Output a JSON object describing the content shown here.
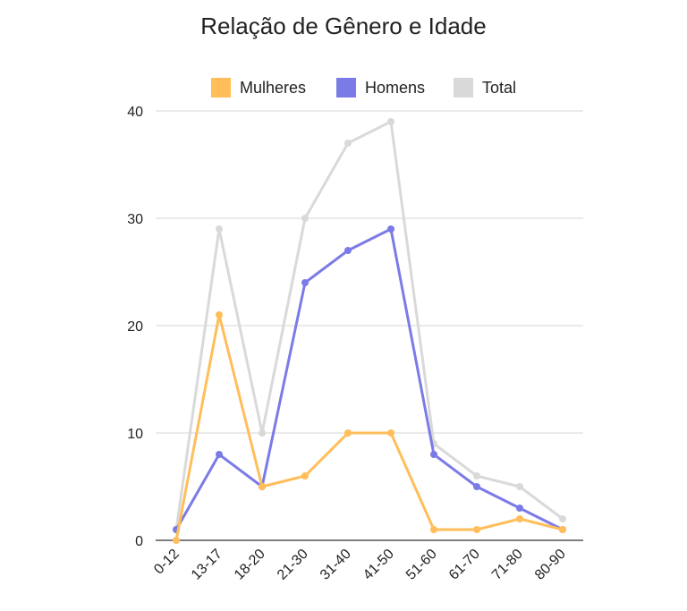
{
  "chart_data": {
    "type": "line",
    "title": "Relação de Gênero e Idade",
    "categories": [
      "0-12",
      "13-17",
      "18-20",
      "21-30",
      "31-40",
      "41-50",
      "51-60",
      "61-70",
      "71-80",
      "80-90"
    ],
    "series": [
      {
        "name": "Total",
        "color": "#d9d9d9",
        "values": [
          1,
          29,
          10,
          30,
          37,
          39,
          9,
          6,
          5,
          2
        ]
      },
      {
        "name": "Homens",
        "color": "#7b7be8",
        "values": [
          1,
          8,
          5,
          24,
          27,
          29,
          8,
          5,
          3,
          1
        ]
      },
      {
        "name": "Mulheres",
        "color": "#ffbe5a",
        "values": [
          0,
          21,
          5,
          6,
          10,
          10,
          1,
          1,
          2,
          1
        ]
      }
    ],
    "legend_order": [
      "Mulheres",
      "Homens",
      "Total"
    ],
    "y_ticks": [
      "0",
      "10",
      "20",
      "30",
      "40"
    ],
    "ylim": [
      0,
      40
    ],
    "grid": true,
    "legend_position": "top"
  }
}
